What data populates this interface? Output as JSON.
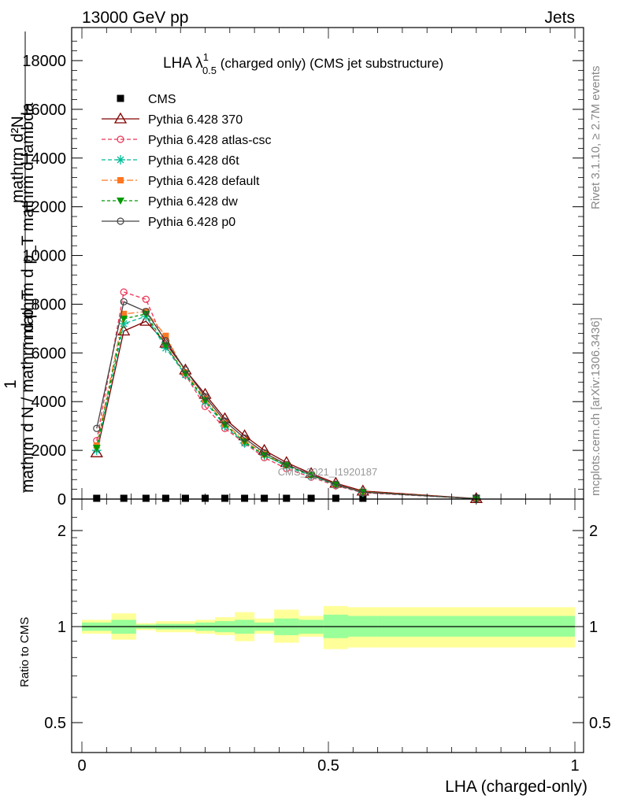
{
  "header": {
    "left": "13000 GeV pp",
    "right": "Jets"
  },
  "side_labels": {
    "rivet": "Rivet 3.1.10, ≥ 2.7M events",
    "mcplots": "mcplots.cern.ch [arXiv:1306.3436]"
  },
  "watermark": "CMS_2021_I1920187",
  "main_plot": {
    "title_main": "LHA λ",
    "title_sup": "1",
    "title_sub": "0.5",
    "title_rest": " (charged only) (CMS jet substructure)",
    "ylabel_lines": [
      "mathrm d²N",
      "mathrm d p_T mathrm d lambda"
    ],
    "ylabel_prefix": "1",
    "ylabel_denominator": "mathrm d N / mathrm d p_T",
    "yticks": [
      {
        "v": 0,
        "label": "0"
      },
      {
        "v": 2000,
        "label": "2000"
      },
      {
        "v": 4000,
        "label": "4000"
      },
      {
        "v": 6000,
        "label": "6000"
      },
      {
        "v": 8000,
        "label": "8000"
      },
      {
        "v": 10000,
        "label": "10000"
      },
      {
        "v": 12000,
        "label": "12000"
      },
      {
        "v": 14000,
        "label": "14000"
      },
      {
        "v": 16000,
        "label": "16000"
      },
      {
        "v": 18000,
        "label": "18000"
      }
    ]
  },
  "ratio_plot": {
    "ylabel": "Ratio to CMS",
    "yticks": [
      {
        "v": 0.5,
        "label": "0.5"
      },
      {
        "v": 1,
        "label": "1"
      },
      {
        "v": 2,
        "label": "2"
      }
    ],
    "xticks": [
      {
        "v": 0,
        "label": "0"
      },
      {
        "v": 0.5,
        "label": "0.5"
      },
      {
        "v": 1,
        "label": "1"
      }
    ],
    "xlabel": "LHA (charged-only)"
  },
  "colors": {
    "band_inner": "#99ff99",
    "band_outer": "#ffff99",
    "cms": "#000000",
    "p370": "#800000",
    "atlas": "#ee3355",
    "d6t": "#00bb99",
    "default": "#ff7722",
    "dw": "#009900",
    "p0": "#444444"
  },
  "chart_data": {
    "type": "line",
    "xlabel": "LHA (charged-only)",
    "xlim": [
      -0.04,
      1.02
    ],
    "ylim": [
      0,
      19200
    ],
    "ratio_ylim": [
      0.4,
      2.4
    ],
    "ratio_scale": "log",
    "grid": false,
    "legend_position": "top-left",
    "bins": [
      {
        "lo": 0.0,
        "hi": 0.06
      },
      {
        "lo": 0.06,
        "hi": 0.11
      },
      {
        "lo": 0.11,
        "hi": 0.15
      },
      {
        "lo": 0.15,
        "hi": 0.19
      },
      {
        "lo": 0.19,
        "hi": 0.23
      },
      {
        "lo": 0.23,
        "hi": 0.27
      },
      {
        "lo": 0.27,
        "hi": 0.31
      },
      {
        "lo": 0.31,
        "hi": 0.35
      },
      {
        "lo": 0.35,
        "hi": 0.39
      },
      {
        "lo": 0.39,
        "hi": 0.44
      },
      {
        "lo": 0.44,
        "hi": 0.49
      },
      {
        "lo": 0.49,
        "hi": 0.54
      },
      {
        "lo": 0.54,
        "hi": 0.6
      },
      {
        "lo": 0.6,
        "hi": 1.0
      }
    ],
    "x": [
      0.03,
      0.085,
      0.13,
      0.17,
      0.21,
      0.25,
      0.29,
      0.33,
      0.37,
      0.415,
      0.465,
      0.515,
      0.57,
      0.8
    ],
    "ratio_band_inner": [
      [
        0.97,
        1.03
      ],
      [
        0.95,
        1.05
      ],
      [
        0.985,
        1.015
      ],
      [
        0.98,
        1.02
      ],
      [
        0.98,
        1.02
      ],
      [
        0.97,
        1.03
      ],
      [
        0.96,
        1.04
      ],
      [
        0.95,
        1.05
      ],
      [
        0.97,
        1.03
      ],
      [
        0.94,
        1.06
      ],
      [
        0.95,
        1.05
      ],
      [
        0.92,
        1.09
      ],
      [
        0.93,
        1.08
      ],
      [
        0.93,
        1.08
      ]
    ],
    "ratio_band_outer": [
      [
        0.95,
        1.05
      ],
      [
        0.91,
        1.1
      ],
      [
        0.975,
        1.025
      ],
      [
        0.96,
        1.04
      ],
      [
        0.96,
        1.04
      ],
      [
        0.95,
        1.05
      ],
      [
        0.94,
        1.07
      ],
      [
        0.9,
        1.11
      ],
      [
        0.95,
        1.06
      ],
      [
        0.89,
        1.13
      ],
      [
        0.93,
        1.08
      ],
      [
        0.85,
        1.16
      ],
      [
        0.86,
        1.15
      ],
      [
        0.86,
        1.15
      ]
    ],
    "series": [
      {
        "name": "CMS",
        "key": "cms",
        "marker": "square",
        "dash": "none",
        "values": [
          0,
          0,
          0,
          0,
          0,
          0,
          0,
          0,
          0,
          0,
          0,
          0,
          0,
          0
        ],
        "x": [
          0.03,
          0.085,
          0.13,
          0.17,
          0.21,
          0.25,
          0.29,
          0.33,
          0.37,
          0.415,
          0.465,
          0.515,
          0.57,
          0.8
        ]
      },
      {
        "name": "Pythia 6.428 370",
        "key": "p370",
        "marker": "triangle",
        "dash": "none",
        "values": [
          1900,
          6900,
          7300,
          6400,
          5300,
          4300,
          3300,
          2600,
          2000,
          1500,
          1050,
          650,
          330,
          20
        ]
      },
      {
        "name": "Pythia 6.428 atlas-csc",
        "key": "atlas",
        "marker": "circle",
        "dash": "5,3",
        "values": [
          2400,
          8500,
          8200,
          6300,
          5100,
          3800,
          2900,
          2300,
          1700,
          1250,
          900,
          550,
          260,
          15
        ]
      },
      {
        "name": "Pythia 6.428 d6t",
        "key": "d6t",
        "marker": "star",
        "dash": "5,3",
        "values": [
          2000,
          7200,
          7500,
          6200,
          5100,
          4000,
          3000,
          2300,
          1800,
          1350,
          950,
          580,
          280,
          15
        ]
      },
      {
        "name": "Pythia 6.428 default",
        "key": "default",
        "marker": "fsquare",
        "dash": "8,3,2,3",
        "values": [
          2200,
          7600,
          7700,
          6700,
          5200,
          4100,
          3100,
          2400,
          1850,
          1400,
          1000,
          600,
          300,
          15
        ]
      },
      {
        "name": "Pythia 6.428 dw",
        "key": "dw",
        "marker": "ftriangle",
        "dash": "4,3",
        "values": [
          2100,
          7400,
          7600,
          6300,
          5150,
          4050,
          3050,
          2350,
          1800,
          1380,
          980,
          590,
          290,
          15
        ]
      },
      {
        "name": "Pythia 6.428 p0",
        "key": "p0",
        "marker": "ocircle",
        "dash": "none",
        "values": [
          2900,
          8100,
          7700,
          6500,
          5300,
          4200,
          3200,
          2500,
          1900,
          1420,
          1000,
          600,
          280,
          15
        ]
      }
    ]
  }
}
